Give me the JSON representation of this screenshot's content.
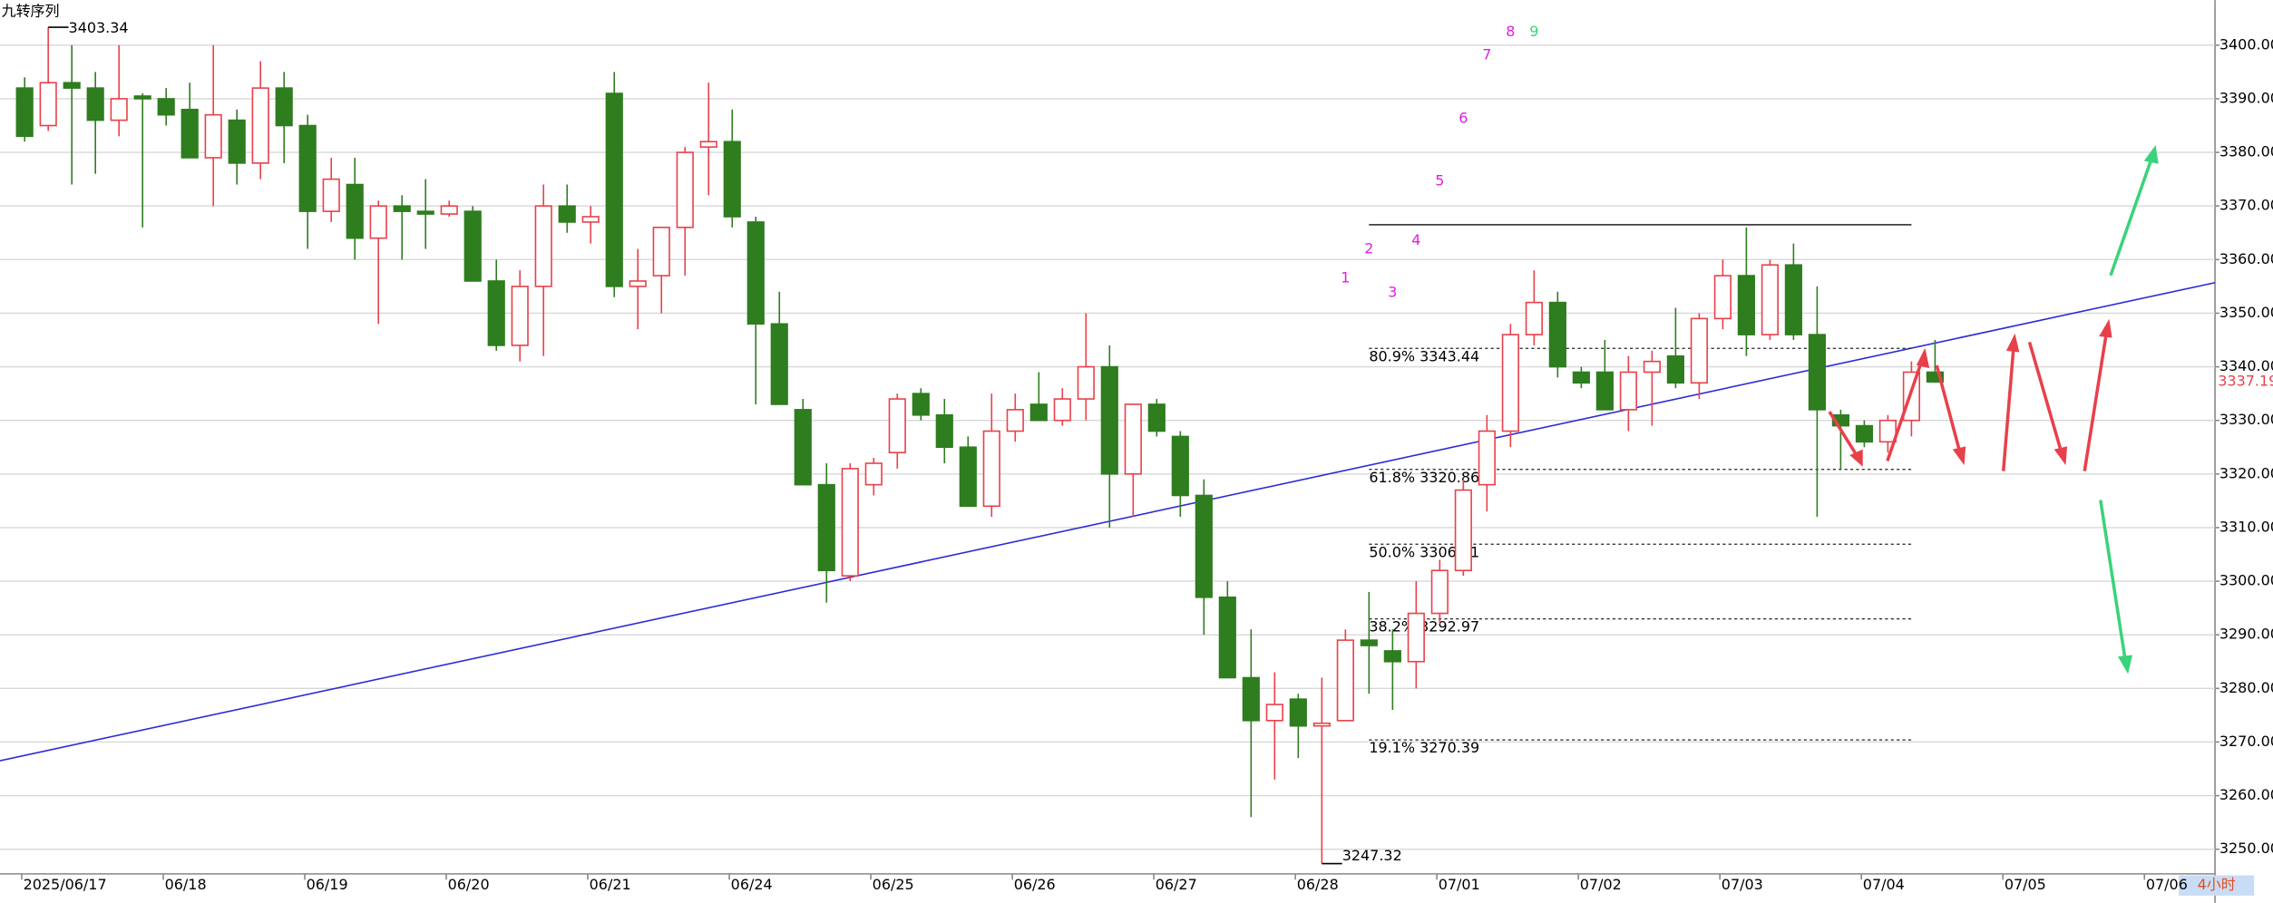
{
  "chart_data": {
    "type": "candlestick",
    "title": "九转序列",
    "period": "4小时",
    "colors": {
      "up": "#e8404a",
      "down": "#2e7d1e",
      "trendline": "#2b2bd6"
    },
    "categories": [
      "2025/06/17",
      null,
      null,
      null,
      null,
      null,
      "06/18",
      null,
      null,
      null,
      null,
      null,
      "06/19",
      null,
      null,
      null,
      null,
      null,
      "06/20",
      null,
      null,
      null,
      null,
      null,
      "06/21",
      null,
      null,
      null,
      null,
      null,
      "06/24",
      null,
      null,
      null,
      null,
      null,
      "06/25",
      null,
      null,
      null,
      null,
      null,
      "06/26",
      null,
      null,
      null,
      null,
      null,
      "06/27",
      null,
      null,
      null,
      null,
      null,
      "06/28",
      null,
      null,
      null,
      null,
      null,
      "07/01",
      null,
      null,
      null,
      null,
      null,
      "07/02",
      null,
      null,
      null,
      null,
      null,
      "07/03",
      null,
      null,
      null,
      null,
      null,
      "07/04",
      null,
      null,
      null,
      null,
      null,
      "07/05",
      null,
      null,
      null,
      null,
      null,
      "07/06"
    ],
    "open": [
      3392,
      3385,
      3393,
      3392,
      3386,
      3390.5,
      3390,
      3388,
      3379,
      3386,
      3378,
      3392,
      3385,
      3369,
      3374,
      3364,
      3370,
      3369,
      3368.5,
      3369,
      3356,
      3344,
      3355,
      3370,
      3367,
      3391,
      3355,
      3357,
      3366,
      3381,
      3382,
      3367,
      3348,
      3332,
      3318,
      3301,
      3318,
      3324,
      3335,
      3331,
      3325,
      3314,
      3328,
      3333,
      3330,
      3334,
      3340,
      3320,
      3333,
      3327,
      3316,
      3297,
      3282,
      3274,
      3278,
      3273,
      3274,
      3289,
      3287,
      3285,
      3294,
      3302,
      3318,
      3328,
      3346,
      3352,
      3339,
      3339,
      3332,
      3339,
      3342,
      3337,
      3349,
      3357,
      3346,
      3359,
      3346,
      3331,
      3329,
      3326,
      3330,
      3339,
      null,
      null,
      null,
      null,
      null,
      null,
      null,
      null,
      null
    ],
    "high": [
      3394,
      3403.34,
      3400,
      3395,
      3400,
      3391,
      3392,
      3393,
      3400,
      3388,
      3397,
      3395,
      3387,
      3379,
      3379,
      3371,
      3372,
      3375,
      3371,
      3370,
      3360,
      3358,
      3374,
      3374,
      3370,
      3395,
      3362,
      3366,
      3381,
      3393,
      3388,
      3368,
      3354,
      3334,
      3322,
      3322,
      3323,
      3335,
      3336,
      3334,
      3327,
      3335,
      3335,
      3339,
      3336,
      3350,
      3344,
      3333,
      3334,
      3328,
      3319,
      3300,
      3291,
      3283,
      3279,
      3282,
      3291,
      3298,
      3291,
      3300,
      3304,
      3319,
      3331,
      3348,
      3358,
      3354,
      3340,
      3345,
      3342,
      3343,
      3351,
      3350,
      3360,
      3366,
      3360,
      3363,
      3355,
      3332,
      3330,
      3331,
      3341,
      3345,
      null,
      null,
      null,
      null,
      null,
      null,
      null,
      null,
      null
    ],
    "low": [
      3382,
      3384,
      3374,
      3376,
      3383,
      3366,
      3385,
      3379,
      3370,
      3374,
      3375,
      3378,
      3362,
      3367,
      3360,
      3348,
      3360,
      3362,
      3368,
      3356,
      3343,
      3341,
      3342,
      3365,
      3363,
      3353,
      3347,
      3350,
      3357,
      3372,
      3366,
      3333,
      3333,
      3318,
      3296,
      3300,
      3316,
      3321,
      3330,
      3322,
      3314,
      3312,
      3326,
      3330,
      3329,
      3330,
      3310,
      3312,
      3327,
      3312,
      3290,
      3282,
      3256,
      3263,
      3267,
      3247.32,
      3274,
      3279,
      3276,
      3280,
      3292,
      3301,
      3313,
      3325,
      3344,
      3338,
      3336,
      3332,
      3328,
      3329,
      3336,
      3334,
      3347,
      3342,
      3345,
      3345,
      3312,
      3321,
      3325,
      3324,
      3327,
      3337,
      null,
      null,
      null,
      null,
      null,
      null,
      null,
      null,
      null
    ],
    "close": [
      3383,
      3393,
      3392,
      3386,
      3390,
      3390,
      3387,
      3379,
      3387,
      3378,
      3392,
      3385,
      3369,
      3375,
      3364,
      3370,
      3369,
      3368.5,
      3370,
      3356,
      3344,
      3355,
      3370,
      3367,
      3368,
      3355,
      3356,
      3366,
      3380,
      3382,
      3368,
      3348,
      3333,
      3318,
      3302,
      3321,
      3322,
      3334,
      3331,
      3325,
      3314,
      3328,
      3332,
      3330,
      3334,
      3340,
      3320,
      3333,
      3328,
      3316,
      3297,
      3282,
      3274,
      3277,
      3273,
      3273.5,
      3289,
      3288,
      3285,
      3294,
      3302,
      3317,
      3328,
      3346,
      3352,
      3340,
      3337,
      3332,
      3339,
      3341,
      3337,
      3349,
      3357,
      3346,
      3359,
      3346,
      3332,
      3329,
      3326,
      3330,
      3339,
      3337.19,
      null,
      null,
      null,
      null,
      null,
      null,
      null,
      null,
      null
    ],
    "ylim": [
      3245.4,
      3408.4
    ],
    "yticks": [
      {
        "value": 3250,
        "label": "3250.00"
      },
      {
        "value": 3260,
        "label": "3260.00"
      },
      {
        "value": 3270,
        "label": "3270.00"
      },
      {
        "value": 3280,
        "label": "3280.00"
      },
      {
        "value": 3290,
        "label": "3290.00"
      },
      {
        "value": 3300,
        "label": "3300.00"
      },
      {
        "value": 3310,
        "label": "3310.00"
      },
      {
        "value": 3320,
        "label": "3320.00"
      },
      {
        "value": 3330,
        "label": "3330.00"
      },
      {
        "value": 3340,
        "label": "3340.00"
      },
      {
        "value": 3350,
        "label": "3350.00"
      },
      {
        "value": 3360,
        "label": "3360.00"
      },
      {
        "value": 3370,
        "label": "3370.00"
      },
      {
        "value": 3380,
        "label": "3380.00"
      },
      {
        "value": 3390,
        "label": "3390.00"
      },
      {
        "value": 3400,
        "label": "3400.00"
      }
    ],
    "grid": true,
    "trendline": [
      3266.5,
      3355.7
    ],
    "fib_top": 3366.5,
    "fib_levels": [
      {
        "value": 3343.44,
        "label": "80.9% 3343.44"
      },
      {
        "value": 3320.86,
        "label": "61.8% 3320.86"
      },
      {
        "value": 3306.91,
        "label": "50.0% 3306.91"
      },
      {
        "value": 3292.97,
        "label": "38.2% 3292.97"
      },
      {
        "value": 3270.39,
        "label": "19.1% 3270.39"
      }
    ],
    "nine_turn": [
      "1",
      "2",
      "3",
      "4",
      "5",
      "6",
      "7",
      "8",
      "9"
    ]
  }
}
